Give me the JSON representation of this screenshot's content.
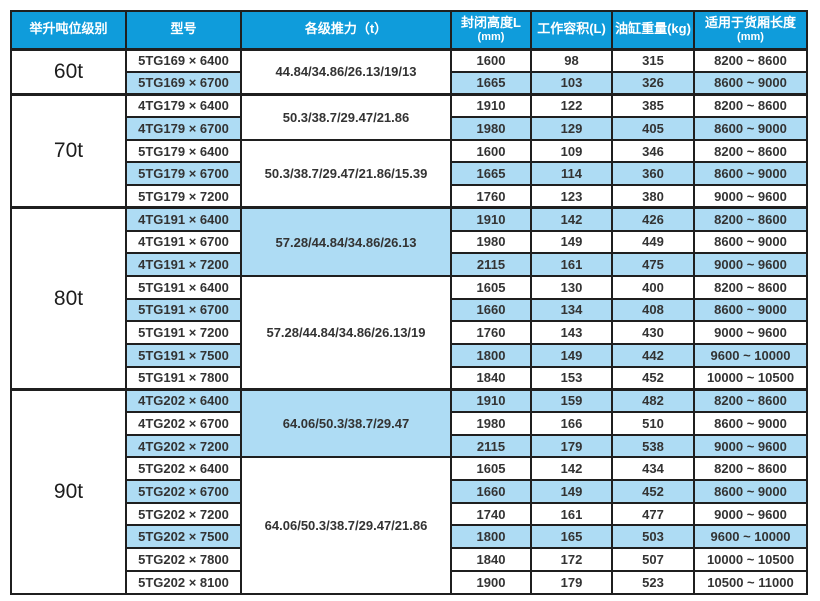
{
  "colors": {
    "header_bg": "#0f9cdb",
    "stripe_bg": "#aedcf4",
    "border": "#1f1f1f",
    "header_text": "#ffffff",
    "body_text": "#333333"
  },
  "table": {
    "columns": [
      {
        "key": "tonnage",
        "label": "举升吨位级别",
        "sub": ""
      },
      {
        "key": "model",
        "label": "型号",
        "sub": ""
      },
      {
        "key": "thrust",
        "label": "各级推力（t）",
        "sub": ""
      },
      {
        "key": "closed-height",
        "label": "封闭高度L",
        "sub": "(mm)"
      },
      {
        "key": "working-volume",
        "label": "工作容积(L)",
        "sub": ""
      },
      {
        "key": "cylinder-weight",
        "label": "油缸重量(kg)",
        "sub": ""
      },
      {
        "key": "box-length",
        "label": "适用于货厢长度",
        "sub": "(mm)"
      }
    ],
    "groups": [
      {
        "tonnage": "60t",
        "subgroups": [
          {
            "thrust": "44.84/34.86/26.13/19/13",
            "thrust_highlight": false,
            "rows": [
              {
                "model": "5TG169 × 6400",
                "closed_height": "1600",
                "working_volume": "98",
                "cylinder_weight": "315",
                "box_length": "8200 ~ 8600",
                "highlight": false
              },
              {
                "model": "5TG169 × 6700",
                "closed_height": "1665",
                "working_volume": "103",
                "cylinder_weight": "326",
                "box_length": "8600 ~ 9000",
                "highlight": true
              }
            ]
          }
        ]
      },
      {
        "tonnage": "70t",
        "subgroups": [
          {
            "thrust": "50.3/38.7/29.47/21.86",
            "thrust_highlight": false,
            "rows": [
              {
                "model": "4TG179 × 6400",
                "closed_height": "1910",
                "working_volume": "122",
                "cylinder_weight": "385",
                "box_length": "8200 ~ 8600",
                "highlight": false
              },
              {
                "model": "4TG179 × 6700",
                "closed_height": "1980",
                "working_volume": "129",
                "cylinder_weight": "405",
                "box_length": "8600 ~ 9000",
                "highlight": true
              }
            ]
          },
          {
            "thrust": "50.3/38.7/29.47/21.86/15.39",
            "thrust_highlight": false,
            "rows": [
              {
                "model": "5TG179 × 6400",
                "closed_height": "1600",
                "working_volume": "109",
                "cylinder_weight": "346",
                "box_length": "8200 ~ 8600",
                "highlight": false
              },
              {
                "model": "5TG179 × 6700",
                "closed_height": "1665",
                "working_volume": "114",
                "cylinder_weight": "360",
                "box_length": "8600 ~ 9000",
                "highlight": true
              },
              {
                "model": "5TG179 × 7200",
                "closed_height": "1760",
                "working_volume": "123",
                "cylinder_weight": "380",
                "box_length": "9000 ~ 9600",
                "highlight": false
              }
            ]
          }
        ]
      },
      {
        "tonnage": "80t",
        "subgroups": [
          {
            "thrust": "57.28/44.84/34.86/26.13",
            "thrust_highlight": true,
            "rows": [
              {
                "model": "4TG191 × 6400",
                "closed_height": "1910",
                "working_volume": "142",
                "cylinder_weight": "426",
                "box_length": "8200 ~ 8600",
                "highlight": true
              },
              {
                "model": "4TG191 × 6700",
                "closed_height": "1980",
                "working_volume": "149",
                "cylinder_weight": "449",
                "box_length": "8600 ~ 9000",
                "highlight": false
              },
              {
                "model": "4TG191 × 7200",
                "closed_height": "2115",
                "working_volume": "161",
                "cylinder_weight": "475",
                "box_length": "9000 ~ 9600",
                "highlight": true
              }
            ]
          },
          {
            "thrust": "57.28/44.84/34.86/26.13/19",
            "thrust_highlight": false,
            "rows": [
              {
                "model": "5TG191 × 6400",
                "closed_height": "1605",
                "working_volume": "130",
                "cylinder_weight": "400",
                "box_length": "8200 ~ 8600",
                "highlight": false
              },
              {
                "model": "5TG191 × 6700",
                "closed_height": "1660",
                "working_volume": "134",
                "cylinder_weight": "408",
                "box_length": "8600 ~ 9000",
                "highlight": true
              },
              {
                "model": "5TG191 × 7200",
                "closed_height": "1760",
                "working_volume": "143",
                "cylinder_weight": "430",
                "box_length": "9000 ~ 9600",
                "highlight": false
              },
              {
                "model": "5TG191 × 7500",
                "closed_height": "1800",
                "working_volume": "149",
                "cylinder_weight": "442",
                "box_length": "9600 ~ 10000",
                "highlight": true
              },
              {
                "model": "5TG191 × 7800",
                "closed_height": "1840",
                "working_volume": "153",
                "cylinder_weight": "452",
                "box_length": "10000 ~ 10500",
                "highlight": false
              }
            ]
          }
        ]
      },
      {
        "tonnage": "90t",
        "subgroups": [
          {
            "thrust": "64.06/50.3/38.7/29.47",
            "thrust_highlight": true,
            "rows": [
              {
                "model": "4TG202 × 6400",
                "closed_height": "1910",
                "working_volume": "159",
                "cylinder_weight": "482",
                "box_length": "8200 ~ 8600",
                "highlight": true
              },
              {
                "model": "4TG202 × 6700",
                "closed_height": "1980",
                "working_volume": "166",
                "cylinder_weight": "510",
                "box_length": "8600 ~ 9000",
                "highlight": false
              },
              {
                "model": "4TG202 × 7200",
                "closed_height": "2115",
                "working_volume": "179",
                "cylinder_weight": "538",
                "box_length": "9000 ~ 9600",
                "highlight": true
              }
            ]
          },
          {
            "thrust": "64.06/50.3/38.7/29.47/21.86",
            "thrust_highlight": false,
            "rows": [
              {
                "model": "5TG202 × 6400",
                "closed_height": "1605",
                "working_volume": "142",
                "cylinder_weight": "434",
                "box_length": "8200 ~ 8600",
                "highlight": false
              },
              {
                "model": "5TG202 × 6700",
                "closed_height": "1660",
                "working_volume": "149",
                "cylinder_weight": "452",
                "box_length": "8600 ~ 9000",
                "highlight": true
              },
              {
                "model": "5TG202 × 7200",
                "closed_height": "1740",
                "working_volume": "161",
                "cylinder_weight": "477",
                "box_length": "9000 ~ 9600",
                "highlight": false
              },
              {
                "model": "5TG202 × 7500",
                "closed_height": "1800",
                "working_volume": "165",
                "cylinder_weight": "503",
                "box_length": "9600 ~ 10000",
                "highlight": true
              },
              {
                "model": "5TG202 × 7800",
                "closed_height": "1840",
                "working_volume": "172",
                "cylinder_weight": "507",
                "box_length": "10000 ~ 10500",
                "highlight": false
              },
              {
                "model": "5TG202 × 8100",
                "closed_height": "1900",
                "working_volume": "179",
                "cylinder_weight": "523",
                "box_length": "10500 ~ 11000",
                "highlight": false
              }
            ]
          }
        ]
      }
    ]
  }
}
